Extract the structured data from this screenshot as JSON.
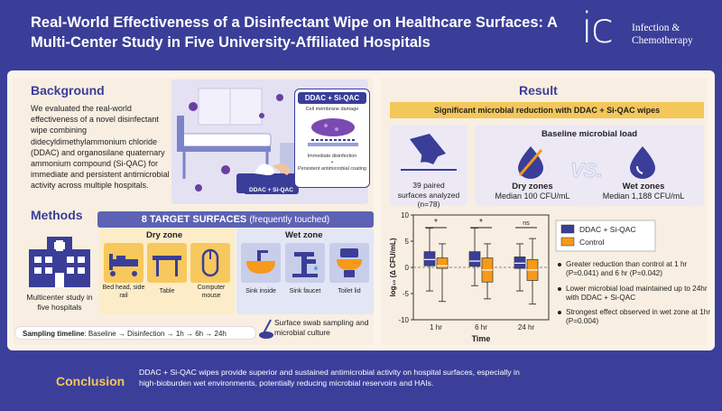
{
  "header": {
    "title": "Real-World Effectiveness of a Disinfectant Wipe on Healthcare Surfaces: A Multi-Center Study in Five University-Affiliated Hospitals",
    "logo_text": "ic",
    "logo_line1": "Infection &",
    "logo_line2": "Chemotherapy"
  },
  "background": {
    "heading": "Background",
    "text": "We evaluated the real-world effectiveness of a novel disinfectant wipe combining didecyldimethylammonium chloride (DDAC) and organosilane quaternary ammonium compound (Si-QAC) for immediate and persistent antimicrobial activity across multiple hospitals.",
    "callout_title": "DDAC + Si-QAC",
    "callout_line1": "Cell membrane damage",
    "callout_line2": "Immediate disinfection",
    "callout_plus": "+",
    "callout_line3": "Persistent antimicrobial coating",
    "wipe_label": "DDAC + Si-QAC"
  },
  "methods": {
    "heading": "Methods",
    "multicenter": "Multicenter study in five hospitals",
    "surfaces_title": "8 TARGET SURFACES",
    "surfaces_sub": "(frequently touched)",
    "dry_zone": "Dry zone",
    "wet_zone": "Wet zone",
    "dry_items": [
      "Bed head, side rail",
      "Table",
      "Computer mouse"
    ],
    "wet_items": [
      "Sink inside",
      "Sink faucet",
      "Toilet lid"
    ],
    "timeline_label": "Sampling timeline",
    "timeline_steps": ": Baseline → Disinfection → 1h → 6h → 24h",
    "swab": "Surface swab sampling and microbial culture"
  },
  "result": {
    "heading": "Result",
    "significant": "Significant microbial reduction with DDAC + Si-QAC wipes",
    "pairs_line1": "39 paired",
    "pairs_line2": "surfaces analyzed",
    "pairs_line3": "(n=78)",
    "baseline_title": "Baseline microbial load",
    "dry_title": "Dry zones",
    "dry_median": "Median 100 CFU/mL",
    "vs": "VS.",
    "wet_title": "Wet zones",
    "wet_median": "Median 1,188 CFU/mL",
    "bullets": [
      "Greater reduction than control at 1 hr (P=0.041) and 6 hr (P=0.042)",
      "Lower microbial load maintained up to 24hr with DDAC + Si-QAC",
      "Strongest effect observed in wet zone at 1hr (P=0.004)"
    ]
  },
  "chart_data": {
    "type": "box",
    "categories": [
      "1 hr",
      "6 hr",
      "24 hr"
    ],
    "xlabel": "Time",
    "ylabel": "log₁₀ (Δ CFU/mL)",
    "ylim": [
      -10,
      10
    ],
    "yticks": [
      -10,
      -5,
      0,
      5,
      10
    ],
    "significance": [
      "*",
      "*",
      "ns"
    ],
    "legend_position": "top-right",
    "series": [
      {
        "name": "DDAC + Si-QAC",
        "color": "#3a3e98",
        "boxes": [
          {
            "min": -4.5,
            "q1": 0.3,
            "median": 1.5,
            "q3": 3.0,
            "max": 7.5
          },
          {
            "min": -3.5,
            "q1": 0.2,
            "median": 1.2,
            "q3": 3.0,
            "max": 7.5
          },
          {
            "min": -4.5,
            "q1": -0.2,
            "median": 0.8,
            "q3": 2.0,
            "max": 4.5
          }
        ]
      },
      {
        "name": "Control",
        "color": "#f59a1b",
        "boxes": [
          {
            "min": -6.5,
            "q1": -0.2,
            "median": 0.3,
            "q3": 1.8,
            "max": 4.5
          },
          {
            "min": -6.0,
            "q1": -2.8,
            "median": -0.5,
            "q3": 1.8,
            "max": 4.5
          },
          {
            "min": -7.0,
            "q1": -2.5,
            "median": -0.5,
            "q3": 1.5,
            "max": 5.5
          }
        ]
      }
    ]
  },
  "conclusion": {
    "heading": "Conclusion",
    "text": "DDAC + Si-QAC wipes provide superior and sustained antimicrobial activity on hospital surfaces, especially in high-bioburden wet environments, potentially reducing microbial reservoirs and HAIs."
  }
}
